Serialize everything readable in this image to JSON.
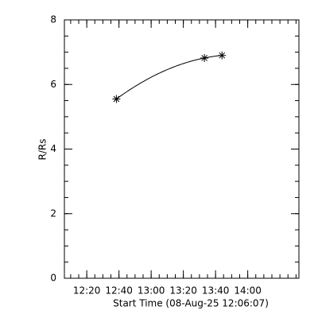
{
  "chart_data": {
    "type": "line",
    "xlabel": "Start Time (08-Aug-25 12:06:07)",
    "ylabel": "R/Rs",
    "x": [
      38.4,
      93.1,
      104.0
    ],
    "series": [
      {
        "color": "#000000",
        "values": [
          5.55,
          6.82,
          6.9
        ]
      }
    ],
    "xlim": [
      6.1,
      151.8
    ],
    "xticks": [
      {
        "value": 20,
        "label": "12:20"
      },
      {
        "value": 40,
        "label": "12:40"
      },
      {
        "value": 60,
        "label": "13:00"
      },
      {
        "value": 80,
        "label": "13:20"
      },
      {
        "value": 100,
        "label": "13:40"
      },
      {
        "value": 120,
        "label": "14:00"
      }
    ],
    "ylim": [
      0,
      8
    ],
    "yticks": [
      0,
      2,
      4,
      6,
      8
    ]
  }
}
